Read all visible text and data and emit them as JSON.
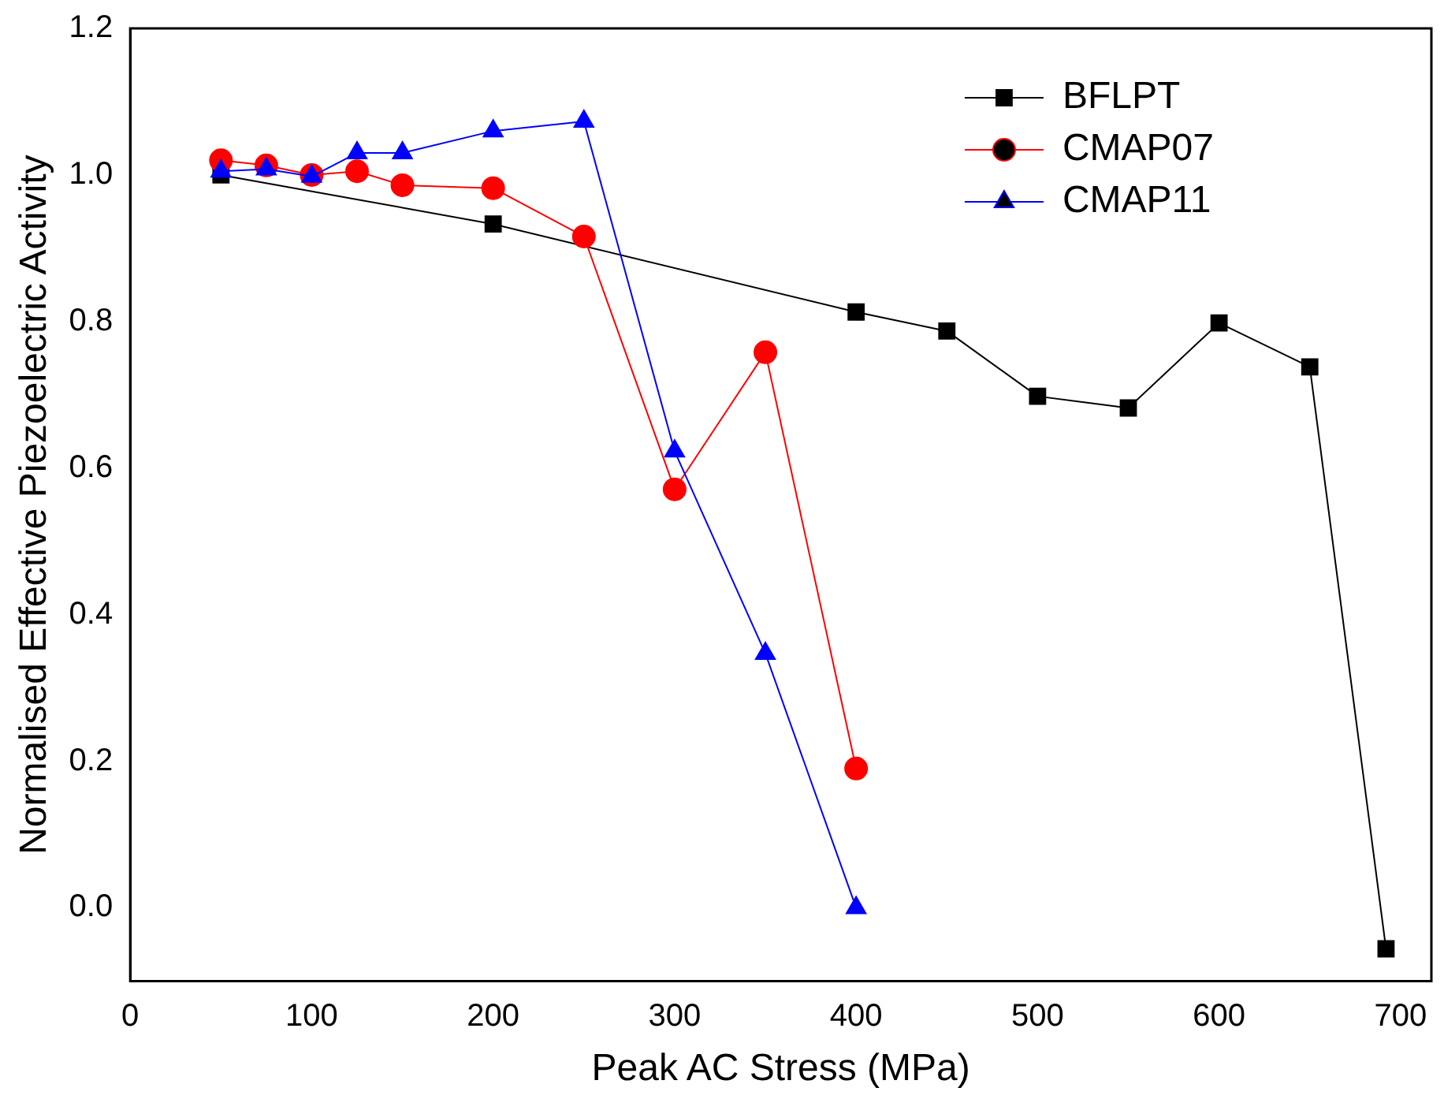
{
  "chart_data": {
    "type": "line",
    "xlabel": "Peak AC Stress (MPa)",
    "ylabel": "Normalised Effective Piezoelectric Activity",
    "xlim": [
      0,
      717
    ],
    "xticks": [
      0,
      100,
      200,
      300,
      400,
      500,
      600,
      700
    ],
    "ylim": [
      -0.1,
      1.2
    ],
    "yticks": [
      {
        "value": 0,
        "label": "0.0"
      },
      0.2,
      0.4,
      0.6,
      0.8,
      {
        "value": 1,
        "label": "1.0"
      },
      1.2
    ],
    "grid": false,
    "legend": "top right",
    "line_style": "solid",
    "series": [
      {
        "name": "BFLPT",
        "color": "#000000",
        "marker": "square",
        "x": [
          50,
          200,
          400,
          450,
          500,
          550,
          600,
          650,
          692
        ],
        "values": [
          1.0,
          0.933,
          0.813,
          0.787,
          0.698,
          0.682,
          0.798,
          0.738,
          -0.056
        ]
      },
      {
        "name": "CMAP07",
        "color": "#ff0000",
        "marker": "circle",
        "x": [
          50,
          75,
          100,
          125,
          150,
          200,
          250,
          300,
          350,
          400
        ],
        "values": [
          1.02,
          1.013,
          1.0,
          1.005,
          0.986,
          0.982,
          0.916,
          0.571,
          0.758,
          0.19
        ]
      },
      {
        "name": "CMAP11",
        "color": "#0000ff",
        "marker": "triangle",
        "x": [
          50,
          75,
          100,
          125,
          150,
          200,
          250,
          300,
          350,
          400
        ],
        "values": [
          1.005,
          1.008,
          0.998,
          1.03,
          1.03,
          1.06,
          1.073,
          0.623,
          0.347,
          0.0
        ]
      }
    ]
  }
}
